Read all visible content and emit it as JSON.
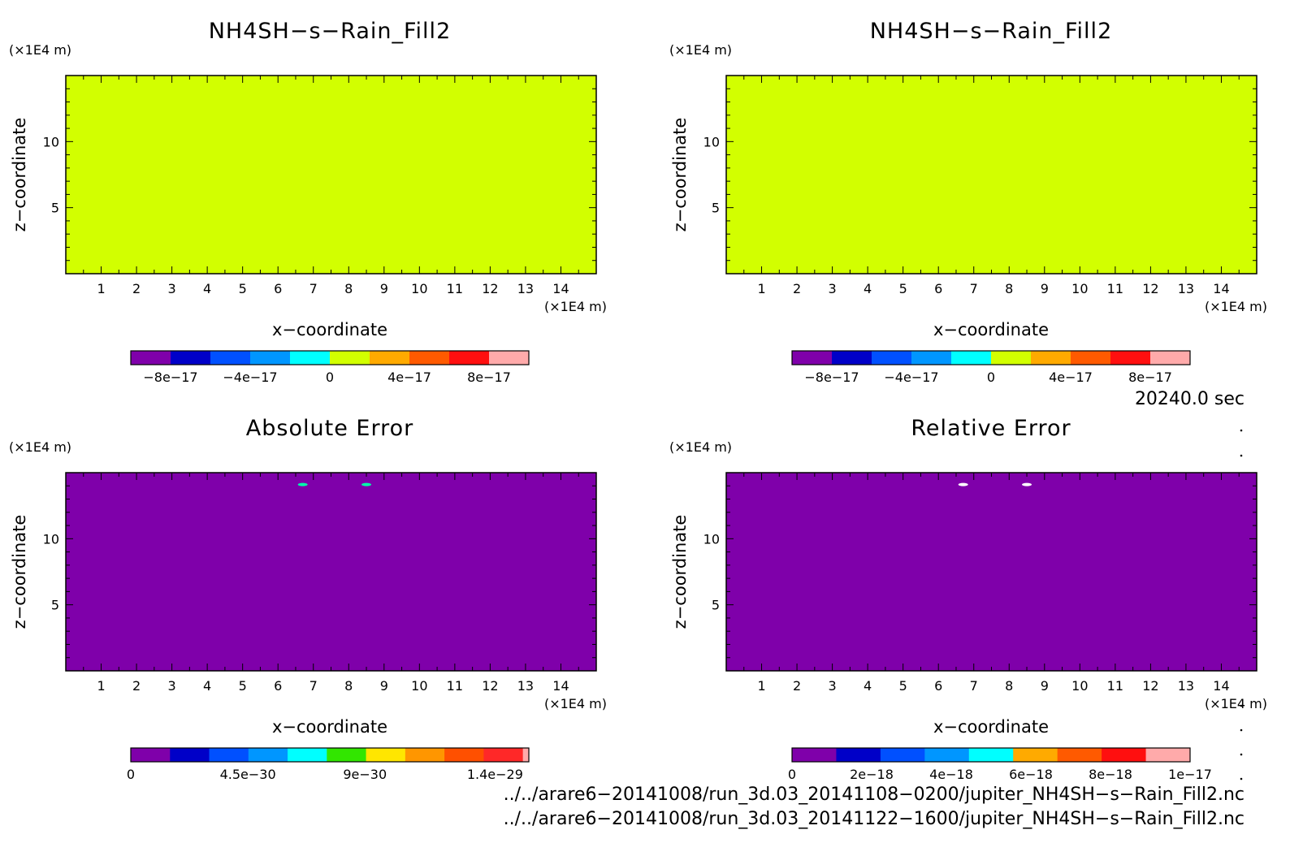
{
  "chart_data": [
    {
      "type": "heatmap",
      "title": "NH4SH−s−Rain_Fill2",
      "xlabel": "x−coordinate",
      "ylabel": "z−coordinate",
      "x_unit": "(×1E4 m)",
      "y_unit": "(×1E4 m)",
      "x_ticks": [
        1,
        2,
        3,
        4,
        5,
        6,
        7,
        8,
        9,
        10,
        11,
        12,
        13,
        14
      ],
      "y_ticks": [
        5,
        10
      ],
      "xlim": [
        0,
        15
      ],
      "ylim": [
        0,
        15
      ],
      "field": "uniform",
      "field_value": 0,
      "hotspots": [],
      "colorbar": {
        "colors": [
          "#7f00aa",
          "#0000c8",
          "#0050ff",
          "#0096ff",
          "#00ffff",
          "#d2ff00",
          "#ffaa00",
          "#ff5a00",
          "#ff0f0f",
          "#ffaaaa"
        ],
        "labels": [
          "−8e−17",
          "−4e−17",
          "0",
          "4e−17",
          "8e−17"
        ],
        "values": [
          -8e-17,
          -4e-17,
          0,
          4e-17,
          8e-17
        ],
        "range": [
          -1e-16,
          1e-16
        ]
      }
    },
    {
      "type": "heatmap",
      "title": "NH4SH−s−Rain_Fill2",
      "xlabel": "x−coordinate",
      "ylabel": "z−coordinate",
      "x_unit": "(×1E4 m)",
      "y_unit": "(×1E4 m)",
      "x_ticks": [
        1,
        2,
        3,
        4,
        5,
        6,
        7,
        8,
        9,
        10,
        11,
        12,
        13,
        14
      ],
      "y_ticks": [
        5,
        10
      ],
      "xlim": [
        0,
        15
      ],
      "ylim": [
        0,
        15
      ],
      "field": "uniform",
      "field_value": 0,
      "hotspots": [],
      "colorbar": {
        "colors": [
          "#7f00aa",
          "#0000c8",
          "#0050ff",
          "#0096ff",
          "#00ffff",
          "#d2ff00",
          "#ffaa00",
          "#ff5a00",
          "#ff0f0f",
          "#ffaaaa"
        ],
        "labels": [
          "−8e−17",
          "−4e−17",
          "0",
          "4e−17",
          "8e−17"
        ],
        "values": [
          -8e-17,
          -4e-17,
          0,
          4e-17,
          8e-17
        ],
        "range": [
          -1e-16,
          1e-16
        ]
      }
    },
    {
      "type": "heatmap",
      "title": "Absolute Error",
      "xlabel": "x−coordinate",
      "ylabel": "z−coordinate",
      "x_unit": "(×1E4 m)",
      "y_unit": "(×1E4 m)",
      "x_ticks": [
        1,
        2,
        3,
        4,
        5,
        6,
        7,
        8,
        9,
        10,
        11,
        12,
        13,
        14
      ],
      "y_ticks": [
        5,
        10
      ],
      "xlim": [
        0,
        15
      ],
      "ylim": [
        0,
        15
      ],
      "field": "uniform",
      "field_value": 0,
      "hotspots": [
        {
          "x": 6.7,
          "z": 14.1,
          "color": "#00ffaa"
        },
        {
          "x": 8.5,
          "z": 14.1,
          "color": "#00ffaa"
        }
      ],
      "colorbar": {
        "colors": [
          "#7f00aa",
          "#0000c8",
          "#0050ff",
          "#0096ff",
          "#00ffff",
          "#32e600",
          "#ffe600",
          "#ff9600",
          "#ff5000",
          "#ff2828",
          "#ffaaaa"
        ],
        "labels": [
          "0",
          "4.5e−30",
          "9e−30",
          "1.4e−29"
        ],
        "values": [
          0,
          4.5e-30,
          9e-30,
          1.4e-29
        ],
        "range": [
          0,
          1.53e-29
        ],
        "last_fraction": 0.015
      }
    },
    {
      "type": "heatmap",
      "title": "Relative Error",
      "xlabel": "x−coordinate",
      "ylabel": "z−coordinate",
      "x_unit": "(×1E4 m)",
      "y_unit": "(×1E4 m)",
      "x_ticks": [
        1,
        2,
        3,
        4,
        5,
        6,
        7,
        8,
        9,
        10,
        11,
        12,
        13,
        14
      ],
      "y_ticks": [
        5,
        10
      ],
      "xlim": [
        0,
        15
      ],
      "ylim": [
        0,
        15
      ],
      "field": "uniform",
      "field_value": 0,
      "hotspots": [
        {
          "x": 6.7,
          "z": 14.1,
          "color": "#ffffff"
        },
        {
          "x": 8.5,
          "z": 14.1,
          "color": "#ffffff"
        }
      ],
      "colorbar": {
        "colors": [
          "#7f00aa",
          "#0000c8",
          "#0050ff",
          "#0096ff",
          "#00ffff",
          "#ffaa00",
          "#ff5a00",
          "#ff0f0f",
          "#ffaaaa"
        ],
        "labels": [
          "0",
          "2e−18",
          "4e−18",
          "6e−18",
          "8e−18",
          "1e−17"
        ],
        "values": [
          0,
          2e-18,
          4e-18,
          6e-18,
          8e-18,
          1e-17
        ],
        "range": [
          0,
          1e-17
        ]
      }
    }
  ],
  "time_label": "20240.0 sec",
  "file_paths": [
    "../../arare6−20141008/run_3d.03_20141108−0200/jupiter_NH4SH−s−Rain_Fill2.nc",
    "../../arare6−20141008/run_3d.03_20141122−1600/jupiter_NH4SH−s−Rain_Fill2.nc"
  ]
}
